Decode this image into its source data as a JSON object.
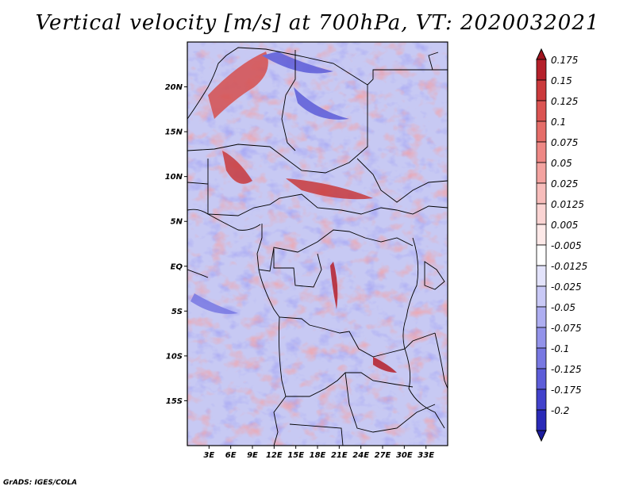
{
  "title": "Vertical velocity [m/s] at 700hPa, VT: 2020032021",
  "credit": "GrADS: IGES/COLA",
  "lat_ticks": [
    {
      "label": "20N",
      "lat": 20
    },
    {
      "label": "15N",
      "lat": 15
    },
    {
      "label": "10N",
      "lat": 10
    },
    {
      "label": "5N",
      "lat": 5
    },
    {
      "label": "EQ",
      "lat": 0
    },
    {
      "label": "5S",
      "lat": -5
    },
    {
      "label": "10S",
      "lat": -10
    },
    {
      "label": "15S",
      "lat": -15
    }
  ],
  "lon_ticks": [
    {
      "label": "3E",
      "lon": 3
    },
    {
      "label": "6E",
      "lon": 6
    },
    {
      "label": "9E",
      "lon": 9
    },
    {
      "label": "12E",
      "lon": 12
    },
    {
      "label": "15E",
      "lon": 15
    },
    {
      "label": "18E",
      "lon": 18
    },
    {
      "label": "21E",
      "lon": 21
    },
    {
      "label": "24E",
      "lon": 24
    },
    {
      "label": "27E",
      "lon": 27
    },
    {
      "label": "30E",
      "lon": 30
    },
    {
      "label": "33E",
      "lon": 33
    }
  ],
  "colorbar": [
    {
      "label": "0.175",
      "color": "#b5202a"
    },
    {
      "label": "0.15",
      "color": "#cb3a3c"
    },
    {
      "label": "0.125",
      "color": "#db5452"
    },
    {
      "label": "0.1",
      "color": "#e56d69"
    },
    {
      "label": "0.075",
      "color": "#ee8885"
    },
    {
      "label": "0.05",
      "color": "#f3a3a0"
    },
    {
      "label": "0.025",
      "color": "#f7bdbb"
    },
    {
      "label": "0.0125",
      "color": "#fad4d3"
    },
    {
      "label": "0.005",
      "color": "#fde9e8"
    },
    {
      "label": "-0.005",
      "color": "#ffffff"
    },
    {
      "label": "-0.0125",
      "color": "#e3e3fb"
    },
    {
      "label": "-0.025",
      "color": "#c9c9f6"
    },
    {
      "label": "-0.05",
      "color": "#aeaef1"
    },
    {
      "label": "-0.075",
      "color": "#9393ea"
    },
    {
      "label": "-0.1",
      "color": "#7878e2"
    },
    {
      "label": "-0.125",
      "color": "#5d5dd9"
    },
    {
      "label": "-0.175",
      "color": "#4242cc"
    },
    {
      "label": "-0.2",
      "color": "#2a2ab8"
    }
  ],
  "colorbar_end_colors": {
    "top": "#a0141e",
    "bottom": "#1c1c9e"
  },
  "domain": {
    "lon_min": 0,
    "lon_max": 36,
    "lat_min": -20,
    "lat_max": 25
  }
}
